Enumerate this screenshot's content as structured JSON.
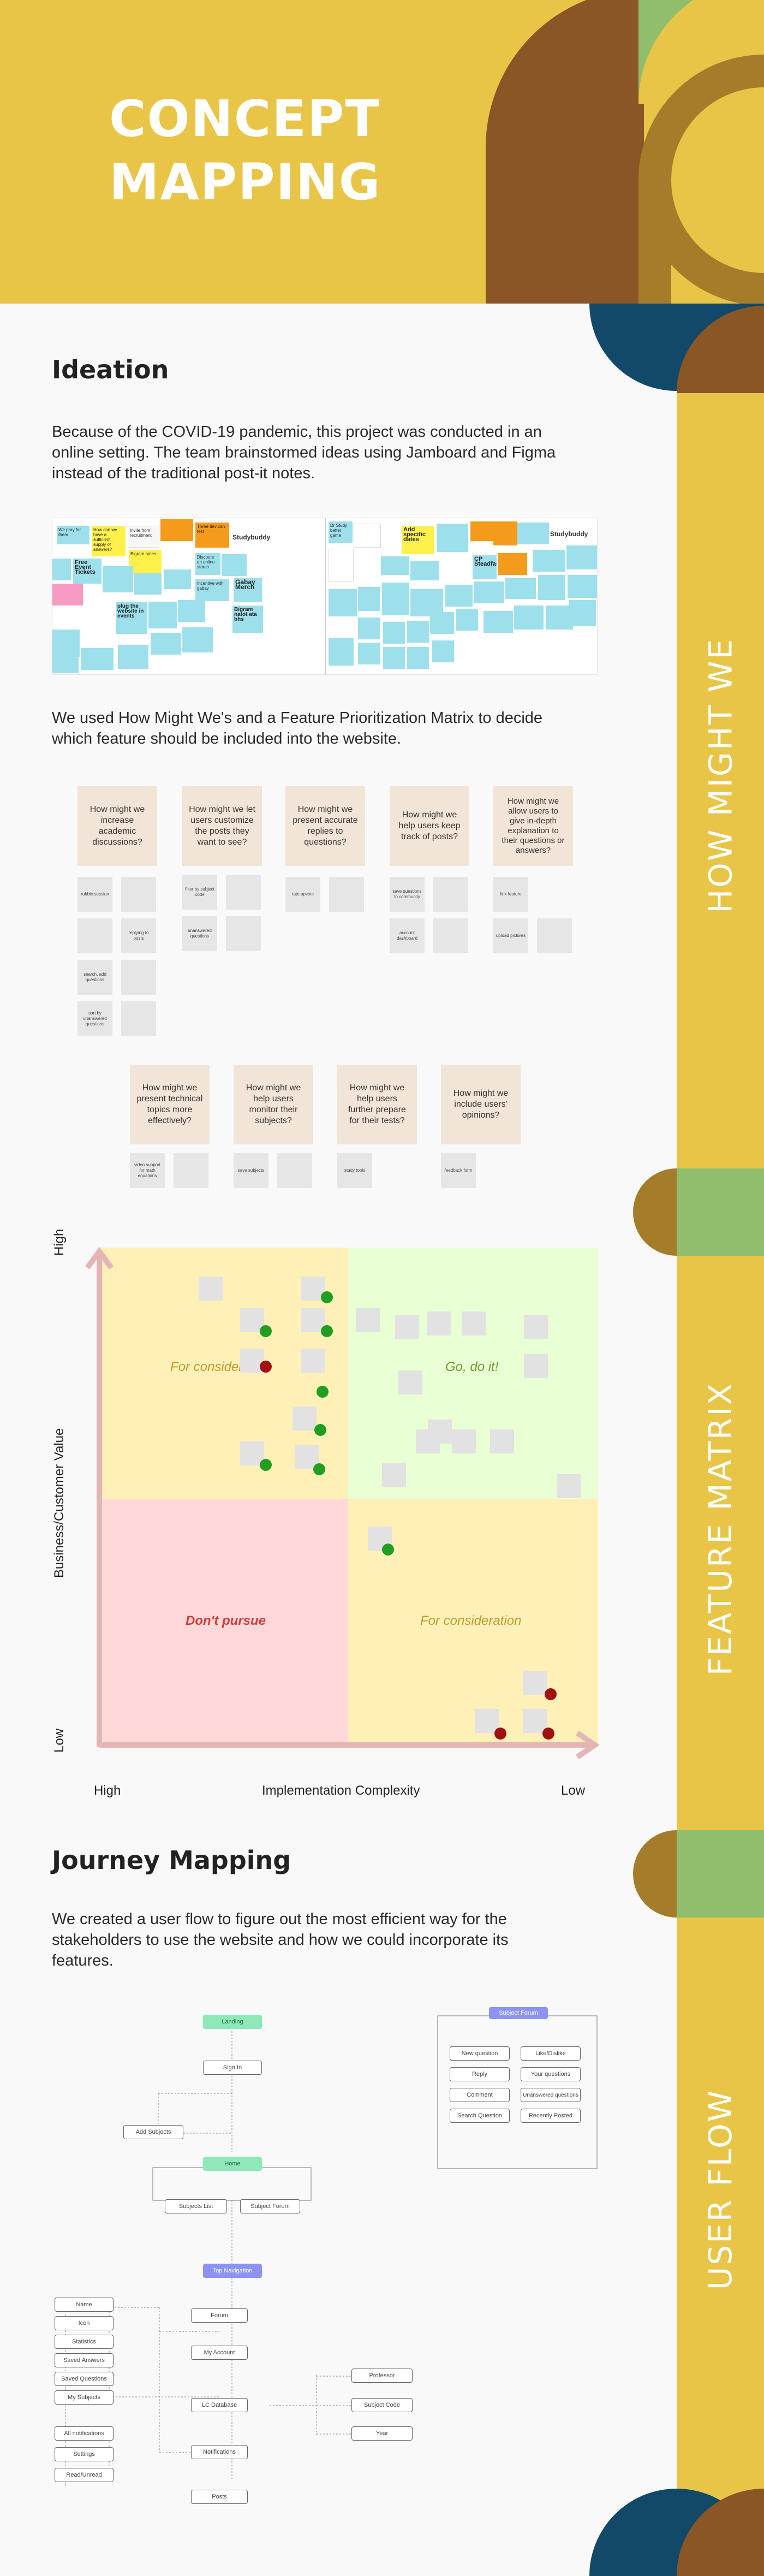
{
  "header": {
    "title_line1": "CONCEPT",
    "title_line2": "MAPPING"
  },
  "colors": {
    "yellow": "#e8c547",
    "brown": "#8a5626",
    "navy": "#134968",
    "green": "#90be6d",
    "tan": "#a57c2a"
  },
  "side_labels": {
    "how_might_we": "HOW MIGHT WE",
    "feature_matrix": "FEATURE MATRIX",
    "user_flow": "USER FLOW"
  },
  "ideation": {
    "heading": "Ideation",
    "paragraph": "Because of the COVID-19 pandemic, this project was conducted in an online setting. The team brainstormed ideas using Jamboard and Figma instead of the traditional post-it notes.",
    "board_logos": [
      "Studybuddy",
      "Studybuddy"
    ],
    "notes": [
      "We pray for them",
      "How can we have a sufficient supply of answers?",
      "Invite from recruitment",
      "Three dev can test",
      "Bigram notes",
      "Free Event Tickets",
      "Gabay Merch",
      "Bigram natot ata bhs",
      "plug the website in events",
      "Incentive with gabay",
      "Discount on online stores",
      "Add specific dates",
      "Dr Study better game",
      "CP Steadfast"
    ]
  },
  "hmw": {
    "intro": "We used How Might We's and a Feature Prioritization Matrix to decide which feature should be included into the website.",
    "cards": [
      "How might we increase academic discussions?",
      "How might we let users customize the posts they want to see?",
      "How might we present accurate replies to questions?",
      "How might we help users keep track of posts?",
      "How might we allow users to give in-depth explanation to their questions or answers?",
      "How might we present technical topics more effectively?",
      "How might we help users monitor their subjects?",
      "How might we help users further prepare for their tests?",
      "How might we include users' opinions?"
    ],
    "notes": [
      [
        "rubble session",
        "replying to posts",
        "search, add questions",
        "sort by unanswered questions"
      ],
      [
        "filter by subject code",
        "unanswered questions"
      ],
      [
        "rate upvote"
      ],
      [
        "save questions to community",
        "account dashboard"
      ],
      [
        "link feature",
        "upload pictures"
      ],
      [
        "video support for math equations"
      ],
      [
        "save subjects"
      ],
      [
        "study tools"
      ],
      [
        "feedback form"
      ]
    ]
  },
  "matrix": {
    "y_axis_label": "Business/Customer Value",
    "x_axis_label": "Implementation Complexity",
    "y_high": "High",
    "y_low": "Low",
    "x_high": "High",
    "x_low": "Low",
    "quadrants": {
      "top_left": "For consideration",
      "top_right": "Go, do it!",
      "bottom_left": "Don't pursue",
      "bottom_right": "For consideration"
    }
  },
  "journey": {
    "heading": "Journey Mapping",
    "paragraph": "We created a user flow to figure out the most efficient way for the stakeholders to use the website and how we could incorporate its features.",
    "flow": {
      "landing": "Landing",
      "signin": "Sign In",
      "add_subjects": "Add Subjects",
      "home": "Home",
      "subjects_list": "Subjects List",
      "subject_forum": "Subject Forum",
      "top_navigation": "Top Navigation",
      "forum": "Forum",
      "my_account": "My Account",
      "lc_database": "LC Database",
      "notifications": "Notifications",
      "posts": "Posts",
      "account_items": [
        "Name",
        "Icon",
        "Statistics",
        "Saved Answers",
        "Saved Questions",
        "My Subjects"
      ],
      "notif_items": [
        "All notifications",
        "Settings",
        "Read/Unread"
      ],
      "db_items": [
        "Professor",
        "Subject Code",
        "Year"
      ],
      "subject_panel_title": "Subject Forum",
      "subject_panel_items": [
        "New question",
        "Like/Dislike",
        "Reply",
        "Your questions",
        "Comment",
        "Unanswered questions",
        "Search Question",
        "Recently Posted"
      ]
    }
  }
}
